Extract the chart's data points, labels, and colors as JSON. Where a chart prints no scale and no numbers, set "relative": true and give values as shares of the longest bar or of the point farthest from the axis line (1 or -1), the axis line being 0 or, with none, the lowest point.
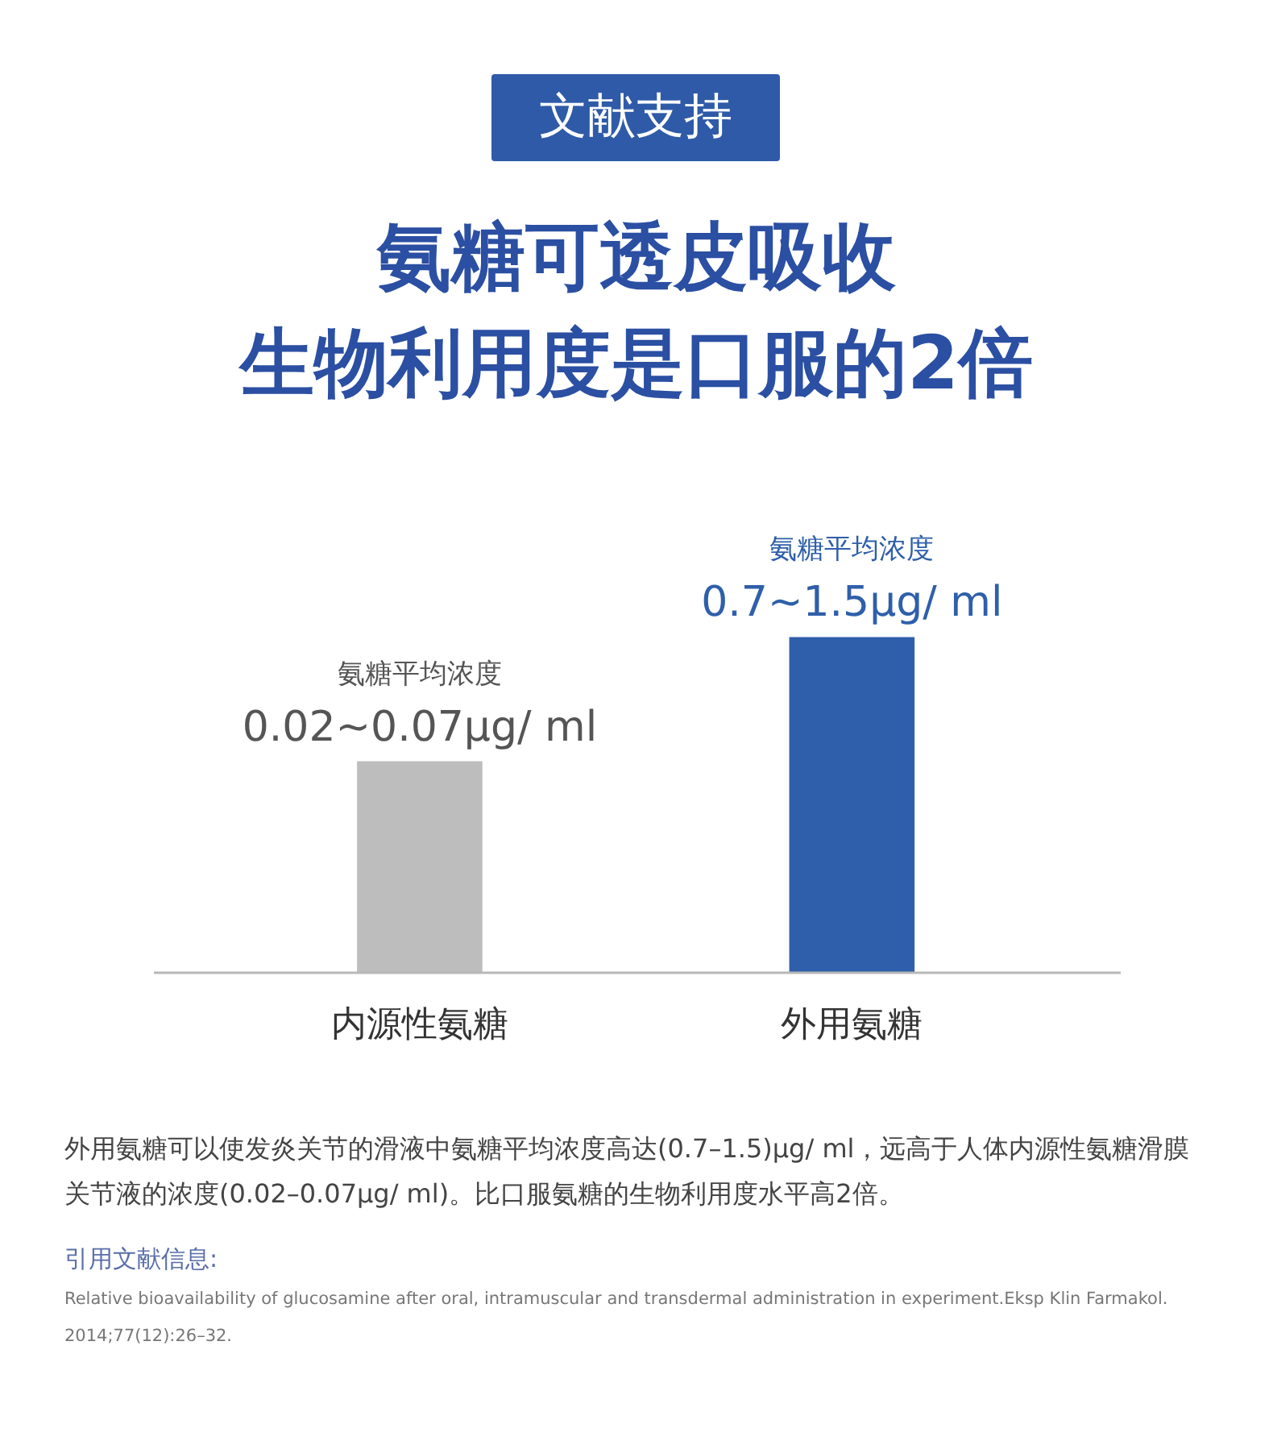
{
  "chart_data": {
    "type": "bar",
    "title": "氨糖可透皮吸收",
    "subtitle": "生物利用度是口服的2倍",
    "categories": [
      "内源性氨糖",
      "外用氨糖"
    ],
    "values": [
      0.63,
      1
    ],
    "colors": [
      "#bdbdbd",
      "#2f5faa"
    ],
    "relative": true,
    "grid": false,
    "annotations": [
      "文献支持",
      {
        "text": "氨糖平均浓度",
        "x": "内源性氨糖",
        "y": 0.63
      },
      {
        "text": "0.02~0.07μg/ ml",
        "x": "内源性氨糖",
        "y": 0.63
      },
      {
        "text": "氨糖平均浓度",
        "x": "外用氨糖",
        "y": 1
      },
      {
        "text": "0.7~1.5μg/ ml",
        "x": "外用氨糖",
        "y": 1
      },
      "外用氨糖可以使发炎关节的滑液中氨糖平均浓度高达(0.7–1.5)μg/ ml，远高于人体内源性氨糖滑膜关节液的浓度(0.02–0.07μg/ ml)。比口服氨糖的生物利用度水平高2倍。",
      "引用文献信息:",
      "Relative bioavailability of glucosamine after oral, intramuscular and transdermal administration in experiment.Eksp Klin Farmakol. 2014;77(12):26–32."
    ]
  }
}
